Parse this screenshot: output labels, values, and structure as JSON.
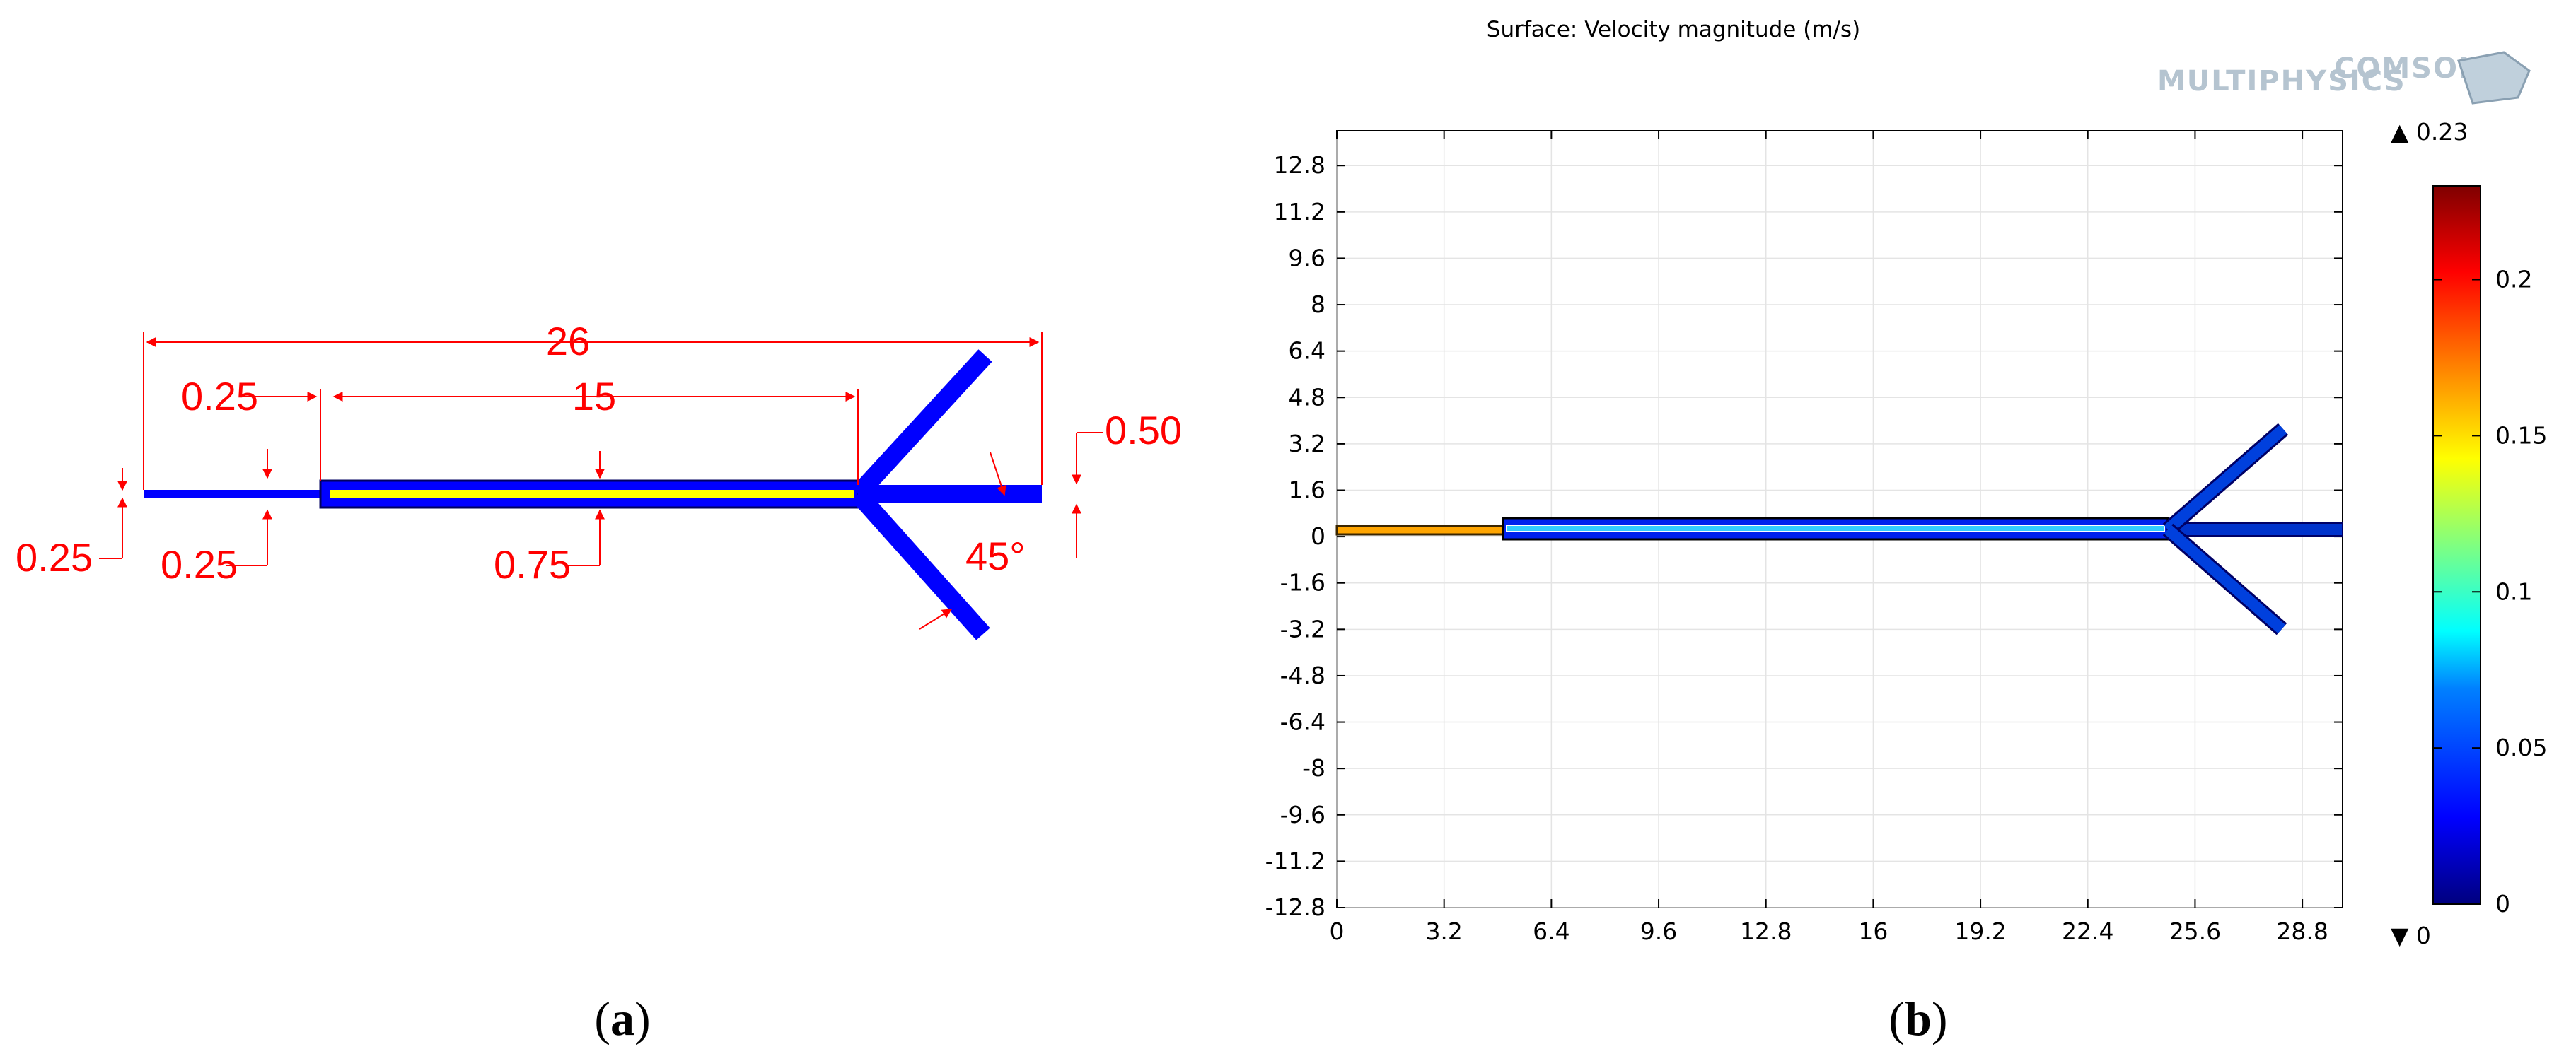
{
  "panel_a": {
    "dimensions": {
      "total_length": "26",
      "inlet_length": "0.25",
      "chamber_length": "15",
      "outlet_width": "0.50",
      "left_width": "0.25",
      "inlet_width": "0.25",
      "chamber_width": "0.75",
      "angle": "45°"
    },
    "caption": {
      "open": "(",
      "letter": "a",
      "close": ")"
    }
  },
  "panel_b": {
    "plot_title": "Surface: Velocity magnitude (m/s)",
    "logo_line1": "COMSOL",
    "logo_line2": "MULTIPHYSICS",
    "colorbar": {
      "max_label": "▲ 0.23",
      "min_label": "▼ 0",
      "ticks": [
        "0.2",
        "0.15",
        "0.1",
        "0.05",
        "0"
      ],
      "colors": [
        "#00007f",
        "#0000ff",
        "#0080ff",
        "#00ffff",
        "#80ff80",
        "#ffff00",
        "#ff8000",
        "#ff0000",
        "#7f0000"
      ]
    },
    "caption": {
      "open": "(",
      "letter": "b",
      "close": ")"
    }
  },
  "chart_data": {
    "type": "heatmap",
    "title": "Surface: Velocity magnitude (m/s)",
    "x_ticks": [
      "0",
      "3.2",
      "6.4",
      "9.6",
      "12.8",
      "16",
      "19.2",
      "22.4",
      "25.6",
      "28.8"
    ],
    "y_ticks": [
      "12.8",
      "11.2",
      "9.6",
      "8",
      "6.4",
      "4.8",
      "3.2",
      "1.6",
      "0",
      "-1.6",
      "-3.2",
      "-4.8",
      "-6.4",
      "-8",
      "-9.6",
      "-11.2",
      "-12.8"
    ],
    "xlim": [
      0,
      30
    ],
    "ylim": [
      -12.8,
      14
    ],
    "colorbar_range": [
      0,
      0.23
    ],
    "colormap": "jet"
  }
}
